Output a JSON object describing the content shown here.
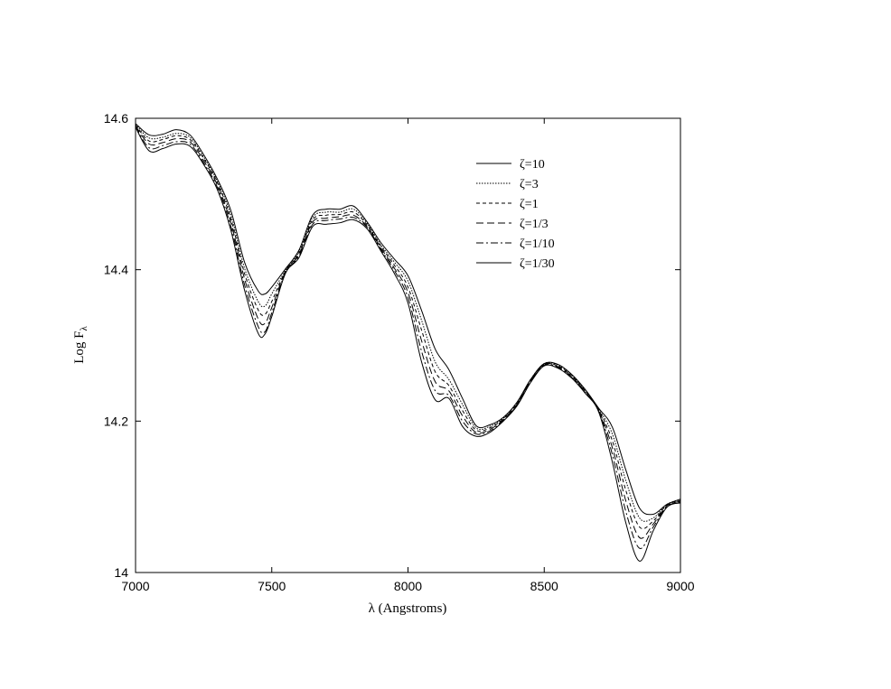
{
  "chart_data": {
    "type": "line",
    "xlabel": "λ (Angstroms)",
    "ylabel": "Log F",
    "ylabel_subscript": "λ",
    "xlim": [
      7000,
      9000
    ],
    "ylim": [
      14.0,
      14.6
    ],
    "xticks": [
      7000,
      7500,
      8000,
      8500,
      9000
    ],
    "xtick_labels": [
      "7000",
      "7500",
      "8000",
      "8500",
      "9000"
    ],
    "yticks": [
      14.0,
      14.2,
      14.4,
      14.6
    ],
    "ytick_labels": [
      "14",
      "14.2",
      "14.4",
      "14.6"
    ],
    "grid": false,
    "legend_position": "top-right",
    "x": [
      7000,
      7050,
      7100,
      7150,
      7200,
      7250,
      7300,
      7350,
      7400,
      7450,
      7475,
      7500,
      7550,
      7600,
      7650,
      7700,
      7750,
      7800,
      7850,
      7900,
      7950,
      8000,
      8050,
      8100,
      8150,
      8200,
      8250,
      8300,
      8350,
      8400,
      8450,
      8500,
      8550,
      8600,
      8650,
      8700,
      8750,
      8800,
      8850,
      8900,
      8950,
      9000
    ],
    "series": [
      {
        "name": "ζ=10",
        "style": "solid",
        "values": [
          14.593,
          14.578,
          14.579,
          14.585,
          14.578,
          14.552,
          14.52,
          14.478,
          14.41,
          14.372,
          14.368,
          14.377,
          14.401,
          14.426,
          14.472,
          14.48,
          14.48,
          14.484,
          14.463,
          14.436,
          14.414,
          14.392,
          14.346,
          14.295,
          14.268,
          14.23,
          14.194,
          14.195,
          14.205,
          14.225,
          14.255,
          14.276,
          14.275,
          14.262,
          14.242,
          14.217,
          14.192,
          14.135,
          14.085,
          14.077,
          14.09,
          14.097
        ]
      },
      {
        "name": "ζ=3",
        "style": "dotted",
        "values": [
          14.592,
          14.574,
          14.575,
          14.58,
          14.575,
          14.549,
          14.517,
          14.472,
          14.402,
          14.358,
          14.352,
          14.368,
          14.399,
          14.424,
          14.469,
          14.476,
          14.476,
          14.48,
          14.461,
          14.433,
          14.41,
          14.385,
          14.333,
          14.278,
          14.255,
          14.222,
          14.191,
          14.193,
          14.204,
          14.224,
          14.255,
          14.276,
          14.274,
          14.261,
          14.241,
          14.216,
          14.183,
          14.121,
          14.072,
          14.072,
          14.09,
          14.096
        ]
      },
      {
        "name": "ζ=1",
        "style": "dashed",
        "values": [
          14.591,
          14.57,
          14.572,
          14.577,
          14.572,
          14.547,
          14.515,
          14.467,
          14.395,
          14.347,
          14.341,
          14.358,
          14.398,
          14.422,
          14.466,
          14.472,
          14.473,
          14.476,
          14.459,
          14.431,
          14.406,
          14.377,
          14.32,
          14.265,
          14.247,
          14.214,
          14.188,
          14.191,
          14.203,
          14.223,
          14.254,
          14.275,
          14.273,
          14.26,
          14.24,
          14.215,
          14.174,
          14.108,
          14.06,
          14.068,
          14.089,
          14.095
        ]
      },
      {
        "name": "ζ=1/3",
        "style": "longdash",
        "values": [
          14.59,
          14.566,
          14.568,
          14.573,
          14.569,
          14.544,
          14.512,
          14.462,
          14.388,
          14.335,
          14.329,
          14.35,
          14.397,
          14.42,
          14.463,
          14.468,
          14.47,
          14.472,
          14.457,
          14.429,
          14.402,
          14.37,
          14.306,
          14.252,
          14.24,
          14.207,
          14.185,
          14.189,
          14.202,
          14.222,
          14.253,
          14.275,
          14.272,
          14.259,
          14.239,
          14.214,
          14.165,
          14.094,
          14.046,
          14.064,
          14.088,
          14.094
        ]
      },
      {
        "name": "ζ=1/10",
        "style": "dashdot",
        "values": [
          14.589,
          14.561,
          14.564,
          14.569,
          14.566,
          14.541,
          14.509,
          14.457,
          14.38,
          14.325,
          14.318,
          14.343,
          14.396,
          14.418,
          14.46,
          14.465,
          14.467,
          14.469,
          14.456,
          14.427,
          14.399,
          14.363,
          14.292,
          14.24,
          14.234,
          14.2,
          14.183,
          14.187,
          14.201,
          14.221,
          14.252,
          14.274,
          14.271,
          14.258,
          14.238,
          14.213,
          14.156,
          14.08,
          14.032,
          14.06,
          14.087,
          14.093
        ]
      },
      {
        "name": "ζ=1/30",
        "style": "solid",
        "values": [
          14.588,
          14.557,
          14.56,
          14.566,
          14.563,
          14.539,
          14.506,
          14.452,
          14.373,
          14.316,
          14.315,
          14.338,
          14.395,
          14.416,
          14.457,
          14.46,
          14.462,
          14.466,
          14.454,
          14.425,
          14.395,
          14.356,
          14.278,
          14.228,
          14.23,
          14.193,
          14.18,
          14.185,
          14.2,
          14.22,
          14.251,
          14.273,
          14.27,
          14.257,
          14.237,
          14.212,
          14.146,
          14.065,
          14.015,
          14.055,
          14.086,
          14.092
        ]
      }
    ]
  }
}
